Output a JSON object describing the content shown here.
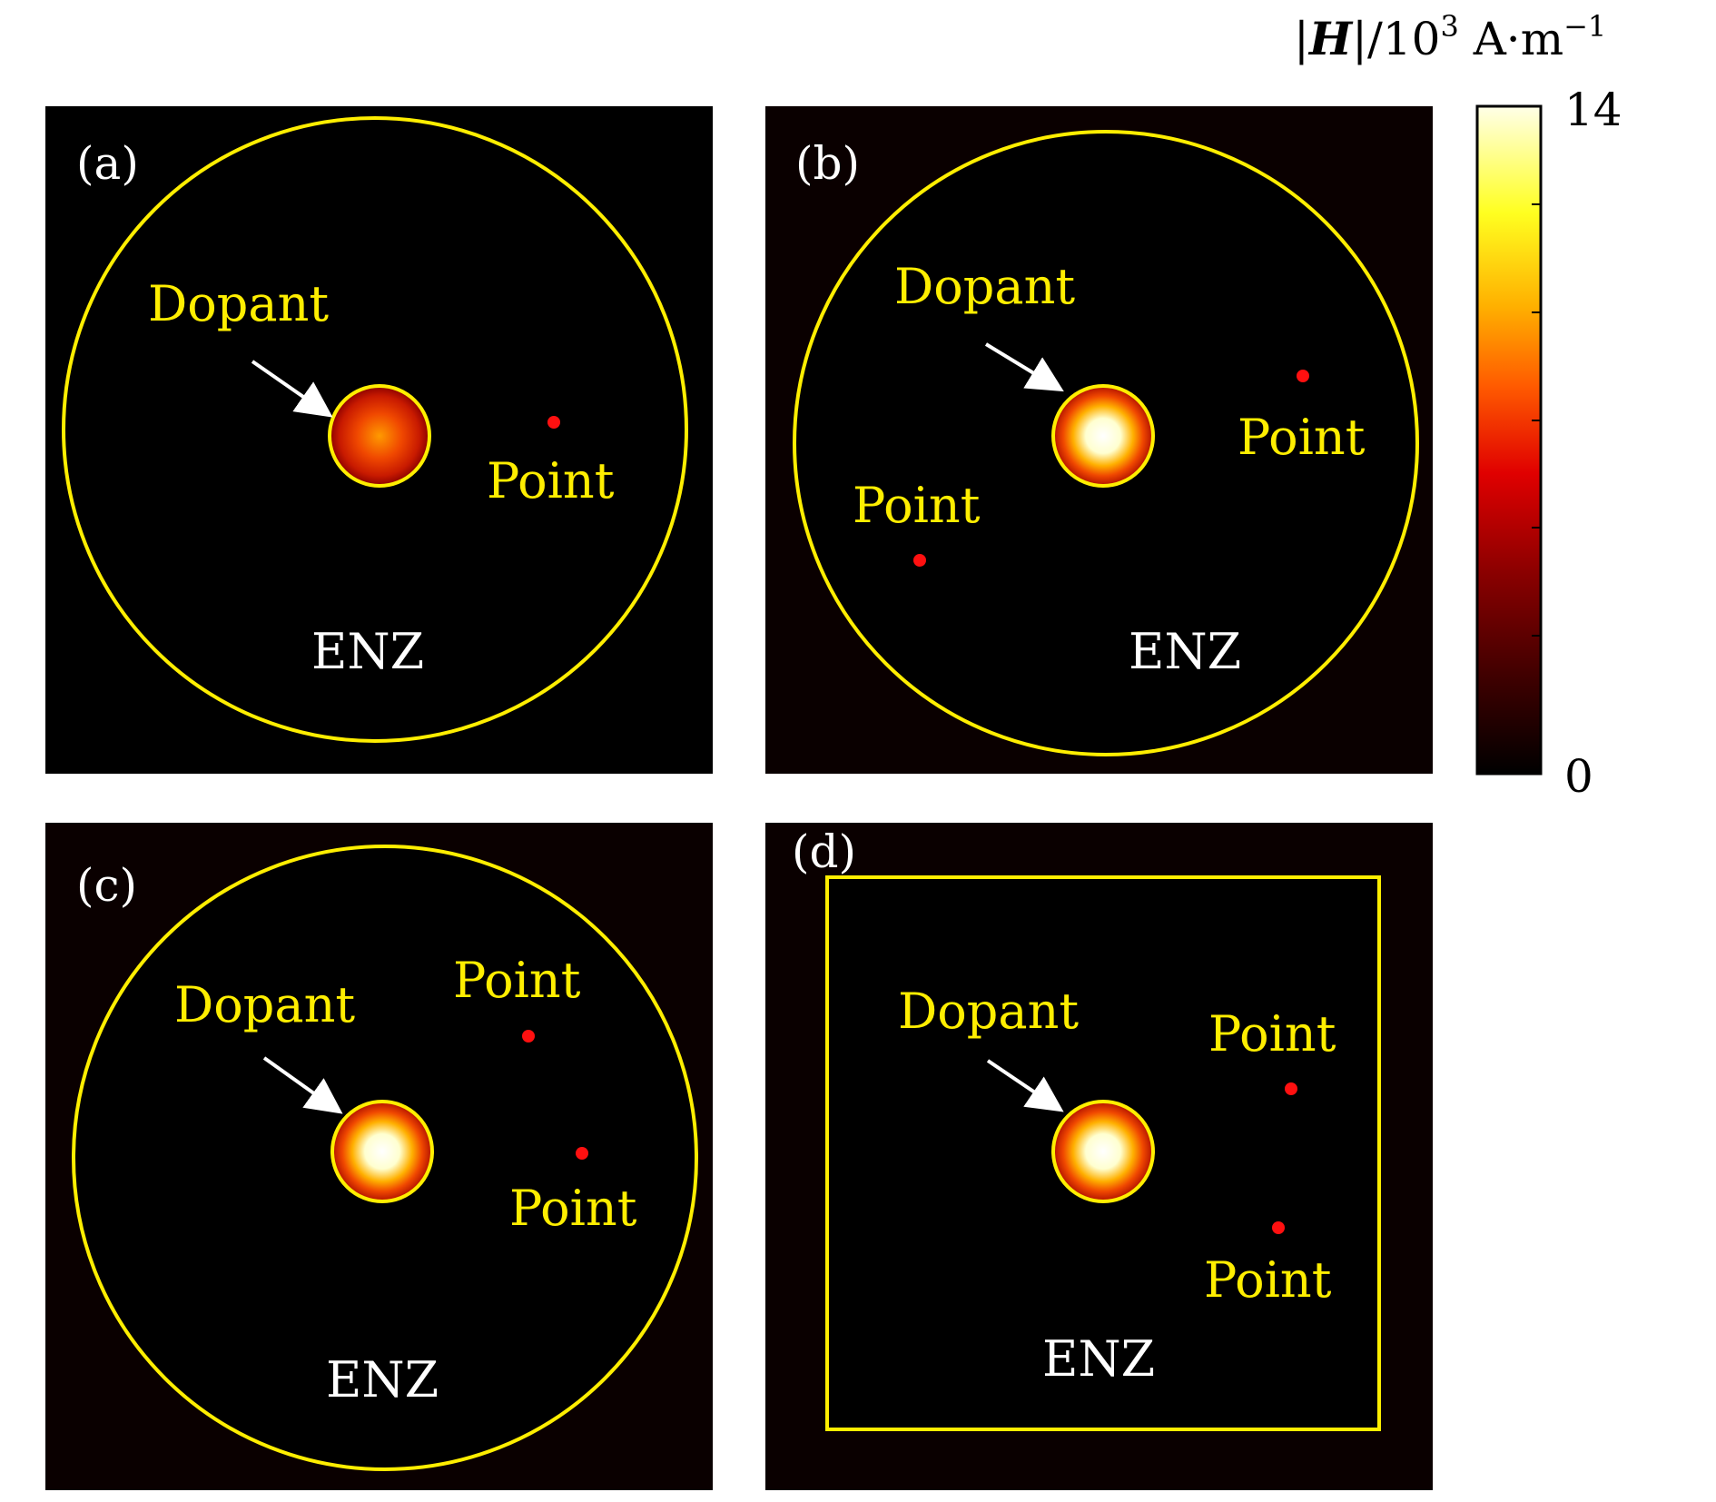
{
  "colorbar": {
    "title_symbol": "H",
    "title_rest": "|/10",
    "title_exp": "3",
    "title_unit": " A·m",
    "title_unit_exp": "−1",
    "max_label": "14",
    "min_label": "0",
    "range": [
      0,
      14
    ],
    "colormap": [
      "#000000",
      "#3d0000",
      "#8a0000",
      "#e00000",
      "#ff5a00",
      "#ffb000",
      "#ffff20",
      "#ffffe8"
    ]
  },
  "panels": [
    {
      "label": "(a)",
      "boundary": "circle",
      "dopant_label": "Dopant",
      "dopant_level": 0.55,
      "material_label": "ENZ",
      "points": [
        {
          "label": "Point"
        }
      ]
    },
    {
      "label": "(b)",
      "boundary": "circle",
      "dopant_label": "Dopant",
      "dopant_level": 1.0,
      "material_label": "ENZ",
      "points": [
        {
          "label": "Point"
        },
        {
          "label": "Point"
        }
      ]
    },
    {
      "label": "(c)",
      "boundary": "circle",
      "dopant_label": "Dopant",
      "dopant_level": 1.0,
      "material_label": "ENZ",
      "points": [
        {
          "label": "Point"
        },
        {
          "label": "Point"
        }
      ]
    },
    {
      "label": "(d)",
      "boundary": "square",
      "dopant_label": "Dopant",
      "dopant_level": 1.0,
      "material_label": "ENZ",
      "points": [
        {
          "label": "Point"
        },
        {
          "label": "Point"
        }
      ]
    }
  ]
}
